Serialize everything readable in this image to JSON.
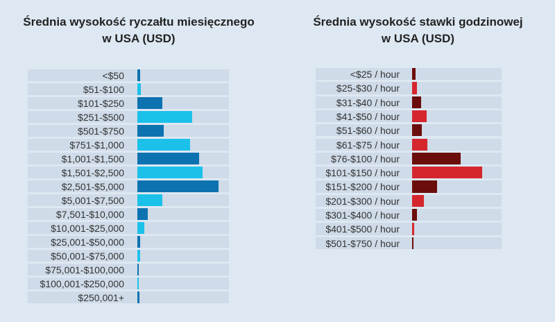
{
  "colors": {
    "background": "#dde8f2",
    "row_band": "#cfdbe8",
    "blue_dark": "#0d72b0",
    "blue_light": "#1cc1ea",
    "red_dark": "#6b0d0b",
    "red_light": "#d5262e"
  },
  "chart_data": [
    {
      "type": "bar",
      "orientation": "horizontal",
      "title_lines": [
        "Średnia wysokość ryczałtu miesięcznego",
        "w USA (USD)"
      ],
      "categories": [
        "<$50",
        "$51-$100",
        "$101-$250",
        "$251-$500",
        "$501-$750",
        "$751-$1,000",
        "$1,001-$1,500",
        "$1,501-$2,500",
        "$2,501-$5,000",
        "$5,001-$7,500",
        "$7,501-$10,000",
        "$10,001-$25,000",
        "$25,001-$50,000",
        "$50,001-$75,000",
        "$75,001-$100,000",
        "$100,001-$250,000",
        "$250,001+"
      ],
      "values": [
        1.5,
        2,
        14,
        31,
        15,
        30,
        35,
        37,
        46,
        14,
        6,
        4,
        1.5,
        1.5,
        0.5,
        0.5,
        1
      ],
      "bar_colors": [
        "#0d72b0",
        "#1cc1ea",
        "#0d72b0",
        "#1cc1ea",
        "#0d72b0",
        "#1cc1ea",
        "#0d72b0",
        "#1cc1ea",
        "#0d72b0",
        "#1cc1ea",
        "#0d72b0",
        "#1cc1ea",
        "#0d72b0",
        "#1cc1ea",
        "#0d72b0",
        "#1cc1ea",
        "#0d72b0"
      ],
      "xlim": [
        0,
        53
      ]
    },
    {
      "type": "bar",
      "orientation": "horizontal",
      "title_lines": [
        "Średnia wysokość stawki godzinowej",
        "w USA (USD)"
      ],
      "categories": [
        "<$25 / hour",
        "$25-$30 / hour",
        "$31-$40 / hour",
        "$41-$50 / hour",
        "$51-$60 / hour",
        "$61-$75 / hour",
        "$76-$100 / hour",
        "$101-$150 / hour",
        "$151-$200 / hour",
        "$201-$300 / hour",
        "$301-$400 / hour",
        "$401-$500 / hour",
        "$501-$750 / hour"
      ],
      "values": [
        2,
        2.5,
        5,
        8,
        5.5,
        8.5,
        27,
        39,
        14,
        6.5,
        2.5,
        1,
        0.5
      ],
      "bar_colors": [
        "#6b0d0b",
        "#d5262e",
        "#6b0d0b",
        "#d5262e",
        "#6b0d0b",
        "#d5262e",
        "#6b0d0b",
        "#d5262e",
        "#6b0d0b",
        "#d5262e",
        "#6b0d0b",
        "#d5262e",
        "#6b0d0b"
      ],
      "xlim": [
        0,
        50
      ]
    }
  ]
}
